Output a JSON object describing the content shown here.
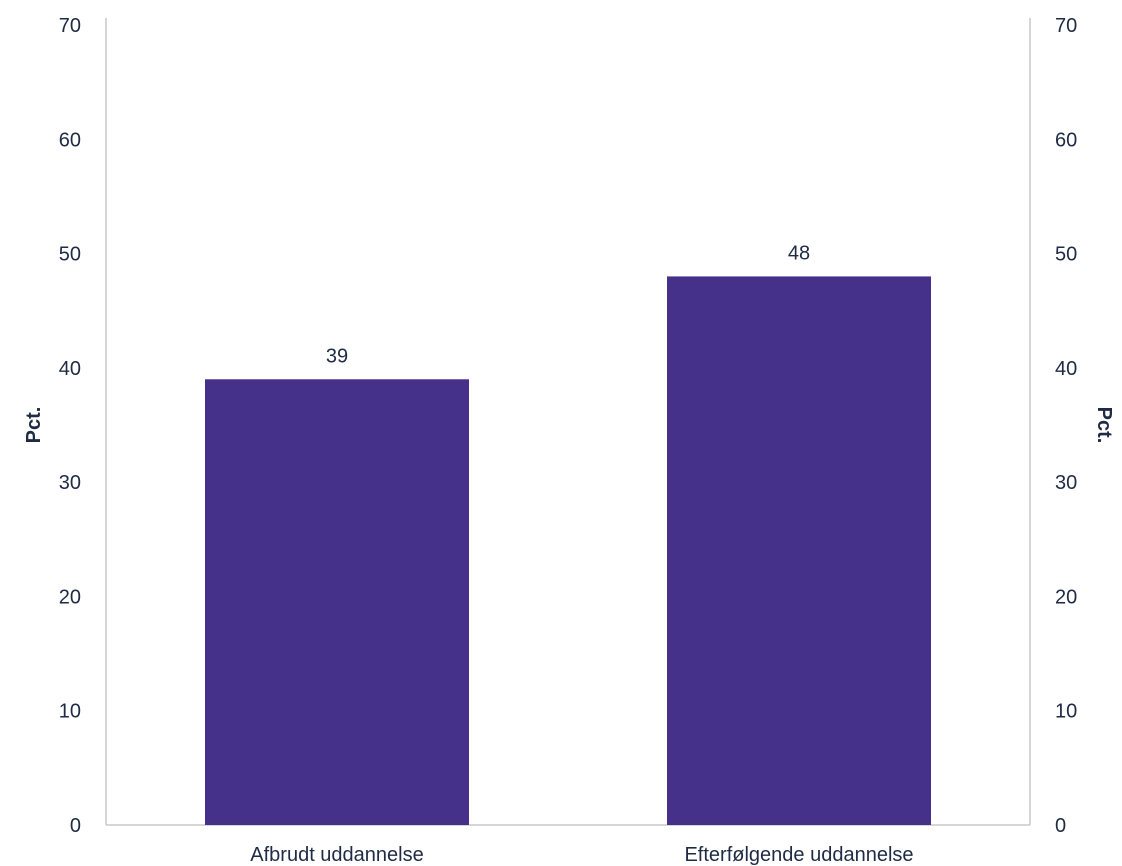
{
  "chart_data": {
    "type": "bar",
    "title": "",
    "categories": [
      "Afbrudt uddannelse",
      "Efterfølgende uddannelse"
    ],
    "values": [
      39,
      48
    ],
    "data_labels": [
      "39",
      "48"
    ],
    "ylabel": "Pct.",
    "ylabel_right": "Pct.",
    "ylim": [
      0,
      70
    ],
    "yticks": [
      0,
      10,
      20,
      30,
      40,
      50,
      60,
      70
    ],
    "ytick_labels": [
      "0",
      "10",
      "20",
      "30",
      "40",
      "50",
      "60",
      "70"
    ],
    "grid": false,
    "legend": "none",
    "colors": {
      "bar": "#45318a",
      "text": "#1f2a44",
      "axis": "#c8c8c8"
    }
  }
}
